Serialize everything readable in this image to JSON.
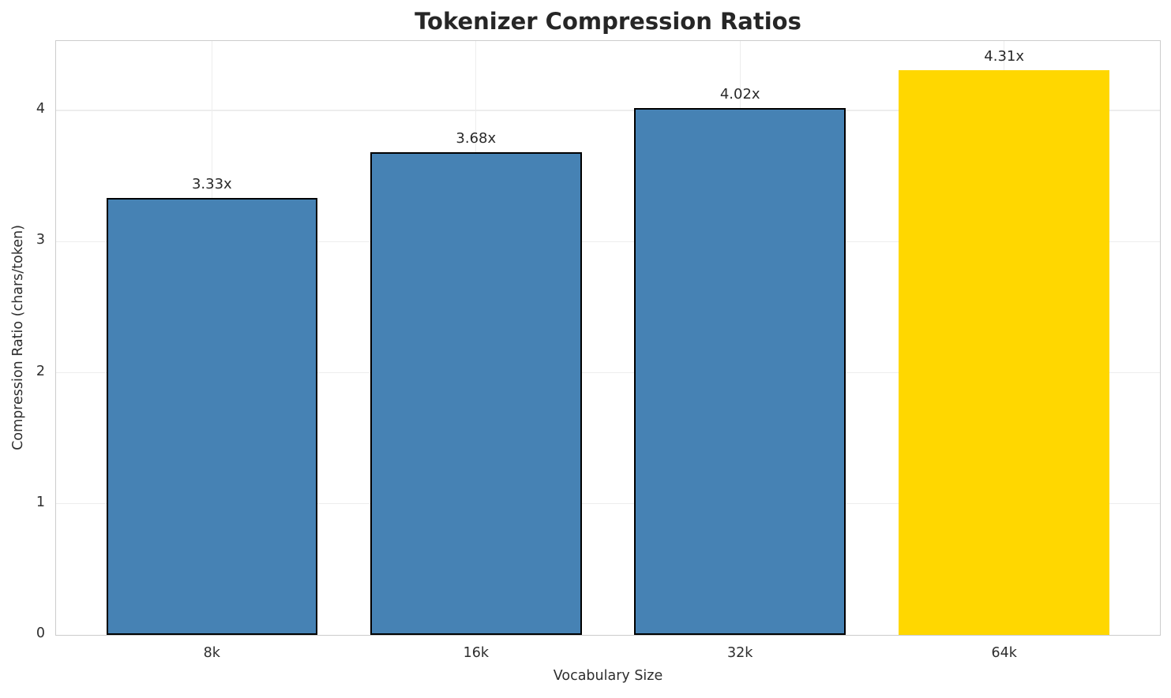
{
  "figure": {
    "title": "Tokenizer Compression Ratios",
    "xlabel": "Vocabulary Size",
    "ylabel": "Compression Ratio (chars/token)"
  },
  "chart_data": {
    "type": "bar",
    "title": "Tokenizer Compression Ratios",
    "xlabel": "Vocabulary Size",
    "ylabel": "Compression Ratio (chars/token)",
    "categories": [
      "8k",
      "16k",
      "32k",
      "64k"
    ],
    "values": [
      3.33,
      3.68,
      4.02,
      4.31
    ],
    "bar_labels": [
      "3.33x",
      "3.68x",
      "4.02x",
      "4.31x"
    ],
    "bar_colors": [
      "#4682B4",
      "#4682B4",
      "#4682B4",
      "#FFD700"
    ],
    "bar_edge_colors": [
      "#000000",
      "#000000",
      "#000000",
      "none"
    ],
    "base_color": "#4682B4",
    "highlight_color": "#FFD700",
    "yticks": [
      0,
      1,
      2,
      3,
      4
    ],
    "ylim": [
      0,
      4.53
    ],
    "xlim": [
      -0.59,
      3.59
    ],
    "bar_width_ratio": 0.8,
    "grid": "both",
    "grid_color": "#ededed",
    "spine_color": "#cccccc",
    "legend": "none",
    "background": "#ffffff"
  }
}
